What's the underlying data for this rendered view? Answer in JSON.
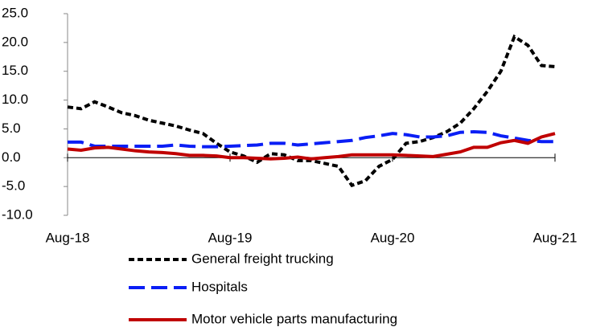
{
  "chart_data": {
    "type": "line",
    "categories": [
      "Aug-18",
      null,
      null,
      null,
      null,
      null,
      null,
      null,
      null,
      null,
      null,
      null,
      "Aug-19",
      null,
      null,
      null,
      null,
      null,
      null,
      null,
      null,
      null,
      null,
      null,
      "Aug-20",
      null,
      null,
      null,
      null,
      null,
      null,
      null,
      null,
      null,
      null,
      null,
      "Aug-21"
    ],
    "series": [
      {
        "name": "General freight trucking",
        "color": "#000000",
        "dash": "7,4",
        "values": [
          8.8,
          8.5,
          9.7,
          8.8,
          7.8,
          7.3,
          6.5,
          6.0,
          5.5,
          4.8,
          4.2,
          2.5,
          1.0,
          0.3,
          -0.8,
          0.7,
          0.5,
          -0.5,
          -0.5,
          -1.0,
          -1.5,
          -4.8,
          -4.0,
          -1.5,
          -0.3,
          2.5,
          2.8,
          3.5,
          4.5,
          6.0,
          8.5,
          11.5,
          15.0,
          21.0,
          19.5,
          16.0,
          15.8
        ]
      },
      {
        "name": "Hospitals",
        "color": "#0a1ef5",
        "dash": "20,8",
        "values": [
          2.7,
          2.7,
          2.0,
          2.0,
          2.0,
          2.0,
          2.0,
          2.0,
          2.2,
          2.0,
          1.9,
          1.9,
          2.0,
          2.1,
          2.2,
          2.5,
          2.5,
          2.2,
          2.4,
          2.6,
          2.8,
          3.0,
          3.5,
          3.8,
          4.2,
          4.0,
          3.6,
          3.6,
          3.8,
          4.4,
          4.5,
          4.4,
          3.8,
          3.4,
          3.0,
          2.8,
          2.8
        ]
      },
      {
        "name": "Motor vehicle parts manufacturing",
        "color": "#c00000",
        "dash": "none",
        "values": [
          1.5,
          1.3,
          1.7,
          1.8,
          1.5,
          1.2,
          1.0,
          0.9,
          0.7,
          0.4,
          0.4,
          0.3,
          0.0,
          0.0,
          -0.1,
          -0.2,
          -0.1,
          0.1,
          -0.2,
          0.0,
          0.2,
          0.5,
          0.5,
          0.5,
          0.5,
          0.4,
          0.3,
          0.2,
          0.6,
          1.0,
          1.8,
          1.8,
          2.6,
          3.0,
          2.5,
          3.6,
          4.2
        ]
      }
    ],
    "ylim": [
      -10,
      25
    ],
    "yticks": [
      {
        "value": -10,
        "label": "-10.0"
      },
      {
        "value": -5,
        "label": "-5.0"
      },
      {
        "value": 0,
        "label": "0.0"
      },
      {
        "value": 5,
        "label": "5.0"
      },
      {
        "value": 10,
        "label": "10.0"
      },
      {
        "value": 15,
        "label": "15.0"
      },
      {
        "value": 20,
        "label": "20.0"
      },
      {
        "value": 25,
        "label": "25.0"
      }
    ],
    "grid": false
  }
}
